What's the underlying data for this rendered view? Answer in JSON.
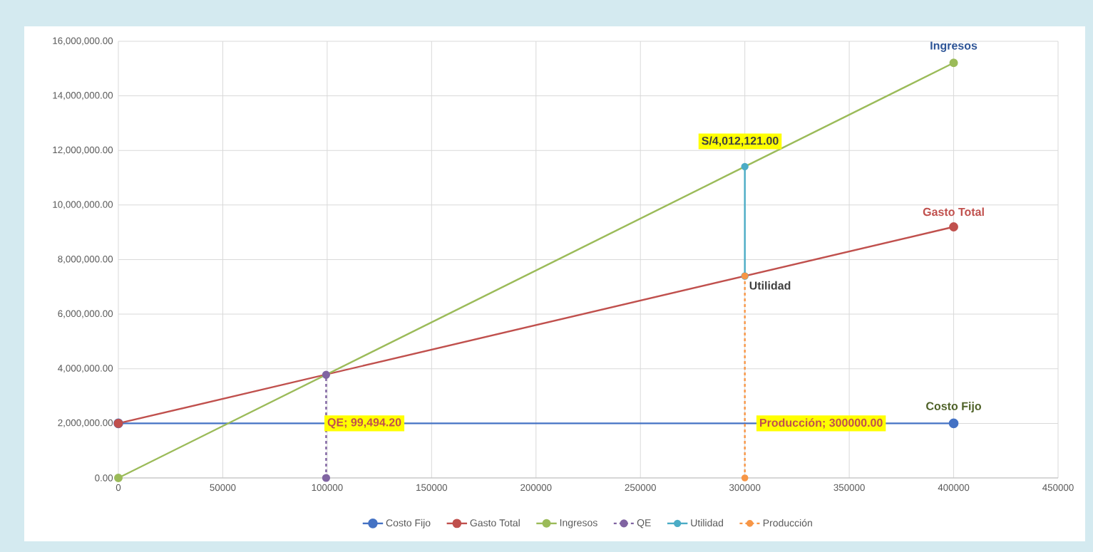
{
  "chart_data": {
    "type": "line",
    "xlim": [
      0,
      450000
    ],
    "ylim": [
      0,
      16000000
    ],
    "xticks": [
      0,
      50000,
      100000,
      150000,
      200000,
      250000,
      300000,
      350000,
      400000,
      450000
    ],
    "yticks": [
      {
        "value": 0,
        "label": "0.00"
      },
      {
        "value": 2000000,
        "label": "2,000,000.00"
      },
      {
        "value": 4000000,
        "label": "4,000,000.00"
      },
      {
        "value": 6000000,
        "label": "6,000,000.00"
      },
      {
        "value": 8000000,
        "label": "8,000,000.00"
      },
      {
        "value": 10000000,
        "label": "10,000,000.00"
      },
      {
        "value": 12000000,
        "label": "12,000,000.00"
      },
      {
        "value": 14000000,
        "label": "14,000,000.00"
      },
      {
        "value": 16000000,
        "label": "16,000,000.00"
      }
    ],
    "grid": true,
    "legend": "bottom",
    "marker": "circle",
    "series": [
      {
        "name": "Costo Fijo",
        "color": "#4472c4",
        "x": [
          0,
          400000
        ],
        "values": [
          2000000,
          2000000
        ]
      },
      {
        "name": "Gasto Total",
        "color": "#c0504d",
        "x": [
          0,
          400000
        ],
        "values": [
          2000000,
          9200000
        ]
      },
      {
        "name": "Ingresos",
        "color": "#9bbb59",
        "x": [
          0,
          400000
        ],
        "values": [
          0,
          15210000
        ]
      },
      {
        "name": "QE",
        "color": "#8064a2",
        "line_style": "dashed",
        "x": [
          99494.2,
          99494.2
        ],
        "values": [
          0,
          3780000
        ]
      },
      {
        "name": "Utilidad",
        "color": "#4bacc6",
        "x": [
          300000,
          300000
        ],
        "values": [
          7400000,
          11410000
        ]
      },
      {
        "name": "Producción",
        "color": "#f79646",
        "line_style": "dashed",
        "x": [
          300000,
          300000
        ],
        "values": [
          0,
          7400000
        ]
      }
    ],
    "annotations": [
      {
        "text": "Ingresos",
        "x": 400000,
        "y": 15210000
      },
      {
        "text": "Gasto Total",
        "x": 400000,
        "y": 9200000
      },
      {
        "text": "Costo Fijo",
        "x": 400000,
        "y": 2000000
      },
      {
        "text": "Utilidad",
        "x": 300000,
        "y": 7400000
      },
      {
        "text": "S/4,012,121.00",
        "x": 300000,
        "y": 11410000
      },
      {
        "text": "QE; 99,494.20",
        "x": 99494.2,
        "y": 2000000
      },
      {
        "text": "Producción; 300000.00",
        "x": 300000,
        "y": 2000000
      }
    ]
  }
}
